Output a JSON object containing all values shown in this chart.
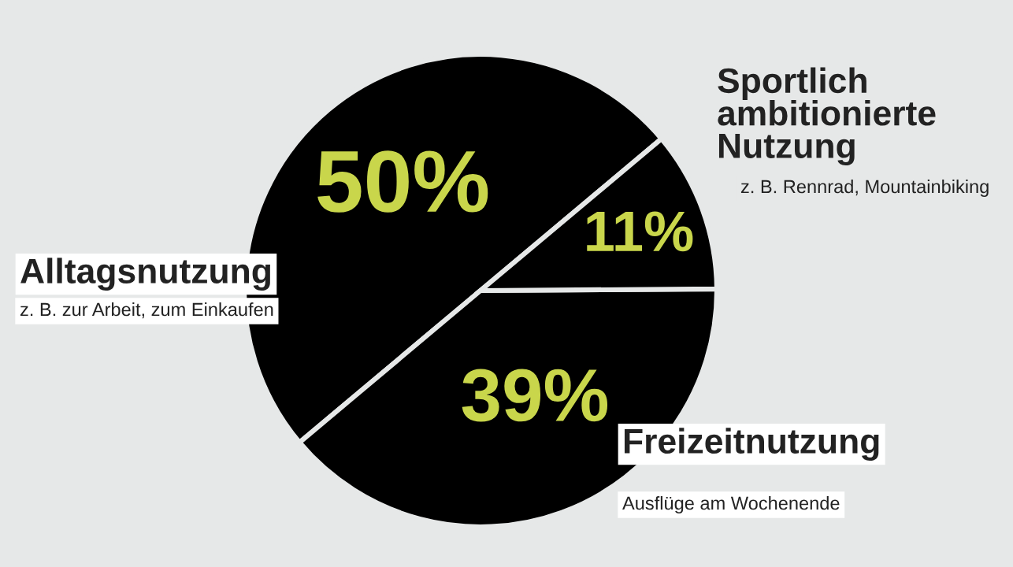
{
  "chart_data": {
    "type": "pie",
    "categories": [
      "Alltagsnutzung",
      "Freizeitnutzung",
      "Sportlich ambitionierte Nutzung"
    ],
    "values": [
      50,
      39,
      11
    ],
    "colors": [
      "#000000",
      "#000000",
      "#000000"
    ],
    "value_labels": [
      "50%",
      "39%",
      "11%"
    ],
    "annotations": [
      "z. B. zur Arbeit, zum Einkaufen",
      "Ausflüge am Wochenende",
      "z. B. Rennrad, Mountainbiking"
    ]
  }
}
